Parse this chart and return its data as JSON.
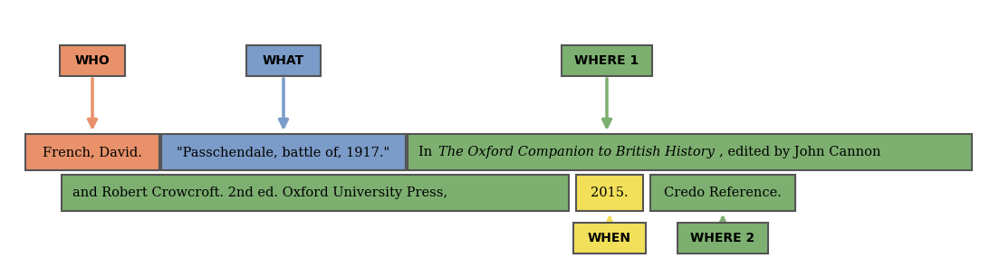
{
  "bg_color": "#ffffff",
  "colors": {
    "who": "#E8916A",
    "what": "#7B9BC8",
    "where1": "#7DB070",
    "where2": "#7DB070",
    "when": "#F2E05A",
    "text_box_who": "#E8916A",
    "text_box_what": "#7B9BC8",
    "text_box_where": "#7DB070",
    "text_box_when": "#F2E05A"
  },
  "labels": {
    "who": "WHO",
    "what": "WHAT",
    "where1": "WHERE 1",
    "where2": "WHERE 2",
    "when": "WHEN"
  },
  "citation": {
    "french": "French, David.",
    "passch": "\"Passchendale, battle of, 1917.\"",
    "where_line2": "and Robert Crowcroft. 2nd ed. Oxford University Press,",
    "when_text": "2015.",
    "where2_text": "Credo Reference."
  }
}
